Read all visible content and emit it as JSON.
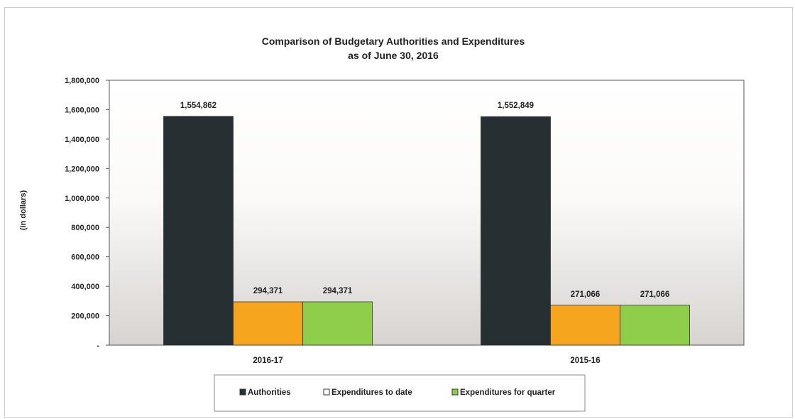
{
  "chart_data": {
    "type": "bar",
    "title_line1": "Comparison of Budgetary Authorities and Expenditures",
    "title_line2": "as of June 30, 2016",
    "ylabel": "(in dollars)",
    "xlabel": "",
    "categories": [
      "2016-17",
      "2015-16"
    ],
    "series": [
      {
        "name": "Authorities",
        "values": [
          1554862,
          1552849
        ],
        "labels": [
          "1,554,862",
          "1,552,849"
        ],
        "color": "#263033"
      },
      {
        "name": "Expenditures to date",
        "values": [
          294371,
          271066
        ],
        "labels": [
          "294,371",
          "271,066"
        ],
        "color": "#f5a51e"
      },
      {
        "name": "Expenditures for quarter",
        "values": [
          294371,
          271066
        ],
        "labels": [
          "294,371",
          "271,066"
        ],
        "color": "#8fce4a"
      }
    ],
    "ylim": [
      0,
      1800000
    ],
    "yticks": [
      {
        "value": 0,
        "label": "-"
      },
      {
        "value": 200000,
        "label": "200,000"
      },
      {
        "value": 400000,
        "label": "400,000"
      },
      {
        "value": 600000,
        "label": "600,000"
      },
      {
        "value": 800000,
        "label": "800,000"
      },
      {
        "value": 1000000,
        "label": "1,000,000"
      },
      {
        "value": 1200000,
        "label": "1,200,000"
      },
      {
        "value": 1400000,
        "label": "1,400,000"
      },
      {
        "value": 1600000,
        "label": "1,600,000"
      },
      {
        "value": 1800000,
        "label": "1,800,000"
      }
    ],
    "grid": false,
    "legend": "bottom",
    "legend_colors": {
      "Authorities": "#263033",
      "Expenditures to date": "#ffffff",
      "Expenditures for quarter": "#8fce4a"
    }
  }
}
